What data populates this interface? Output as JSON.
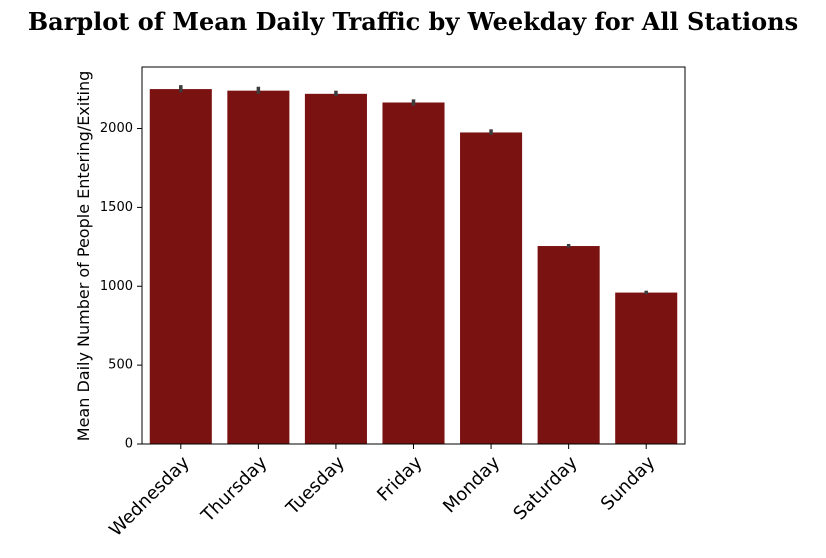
{
  "chart_data": {
    "type": "bar",
    "title": "Barplot of Mean Daily Traffic by Weekday for All Stations",
    "xlabel": "",
    "ylabel": "Mean Daily Number of People Entering/Exiting",
    "categories": [
      "Wednesday",
      "Thursday",
      "Tuesday",
      "Friday",
      "Monday",
      "Saturday",
      "Sunday"
    ],
    "values": [
      2250,
      2240,
      2220,
      2165,
      1975,
      1255,
      960
    ],
    "error_low": [
      2230,
      2220,
      2205,
      2145,
      1960,
      1245,
      950
    ],
    "error_high": [
      2275,
      2265,
      2240,
      2185,
      1995,
      1268,
      972
    ],
    "ylim": [
      0,
      2390
    ],
    "yticks": [
      0,
      500,
      1000,
      1500,
      2000
    ],
    "ytick_labels": [
      "0",
      "500",
      "1000",
      "1500",
      "2000"
    ],
    "grid": false,
    "legend": "none",
    "bar_color": "#7b1212",
    "error_bar_color": "#3d3d3d"
  }
}
